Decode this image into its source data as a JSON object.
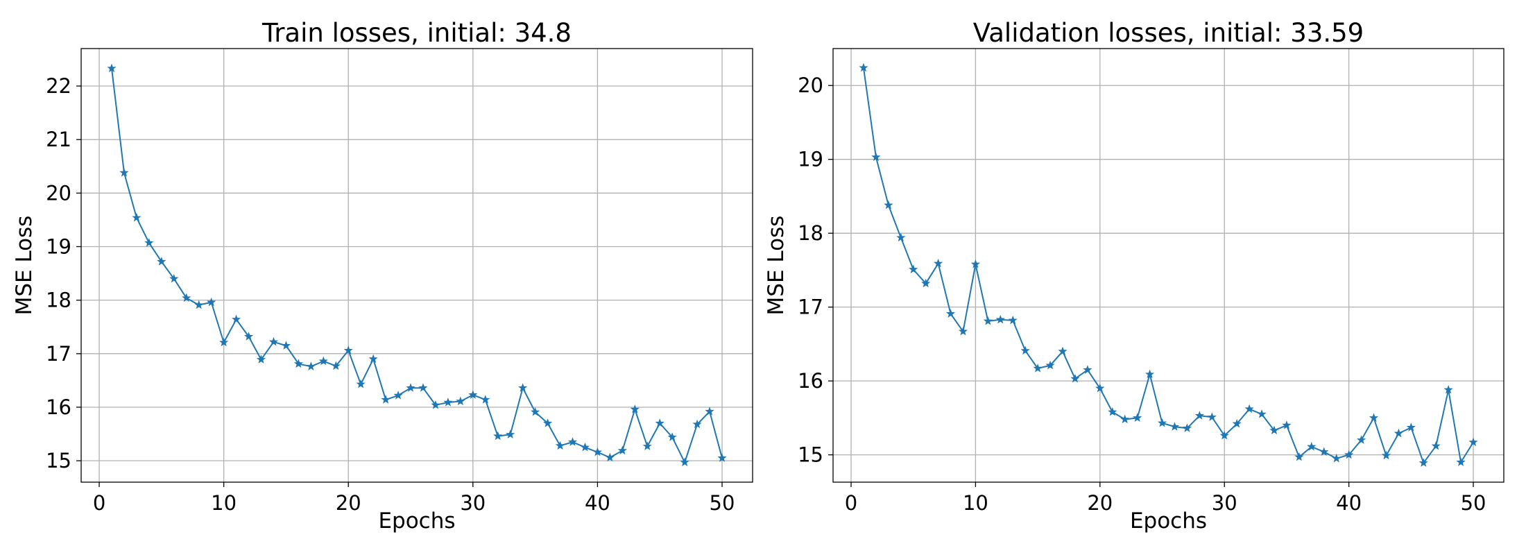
{
  "colors": {
    "series": "#1f77b4",
    "grid": "#b0b0b0",
    "axes": "#000000"
  },
  "chart_data": [
    {
      "type": "line",
      "title": "Train losses, initial: 34.8",
      "xlabel": "Epochs",
      "ylabel": "MSE Loss",
      "xlim": [
        -1.45,
        52.45
      ],
      "ylim": [
        14.6,
        22.7
      ],
      "xticks": [
        0,
        10,
        20,
        30,
        40,
        50
      ],
      "yticks": [
        15,
        16,
        17,
        18,
        19,
        20,
        21,
        22
      ],
      "grid": true,
      "marker": "star",
      "x": [
        1,
        2,
        3,
        4,
        5,
        6,
        7,
        8,
        9,
        10,
        11,
        12,
        13,
        14,
        15,
        16,
        17,
        18,
        19,
        20,
        21,
        22,
        23,
        24,
        25,
        26,
        27,
        28,
        29,
        30,
        31,
        32,
        33,
        34,
        35,
        36,
        37,
        38,
        39,
        40,
        41,
        42,
        43,
        44,
        45,
        46,
        47,
        48,
        49,
        50
      ],
      "y": [
        22.33,
        20.38,
        19.54,
        19.07,
        18.72,
        18.4,
        18.04,
        17.91,
        17.96,
        17.21,
        17.64,
        17.32,
        16.89,
        17.22,
        17.15,
        16.81,
        16.76,
        16.86,
        16.77,
        17.06,
        16.43,
        16.9,
        16.14,
        16.22,
        16.36,
        16.36,
        16.04,
        16.09,
        16.11,
        16.23,
        16.14,
        15.46,
        15.49,
        16.36,
        15.91,
        15.7,
        15.28,
        15.35,
        15.25,
        15.16,
        15.06,
        15.19,
        15.96,
        15.27,
        15.7,
        15.44,
        14.97,
        15.68,
        15.92,
        15.05
      ]
    },
    {
      "type": "line",
      "title": "Validation losses, initial: 33.59",
      "xlabel": "Epochs",
      "ylabel": "MSE Loss",
      "xlim": [
        -1.45,
        52.45
      ],
      "ylim": [
        14.63,
        20.5
      ],
      "xticks": [
        0,
        10,
        20,
        30,
        40,
        50
      ],
      "yticks": [
        15,
        16,
        17,
        18,
        19,
        20
      ],
      "grid": true,
      "marker": "star",
      "x": [
        1,
        2,
        3,
        4,
        5,
        6,
        7,
        8,
        9,
        10,
        11,
        12,
        13,
        14,
        15,
        16,
        17,
        18,
        19,
        20,
        21,
        22,
        23,
        24,
        25,
        26,
        27,
        28,
        29,
        30,
        31,
        32,
        33,
        34,
        35,
        36,
        37,
        38,
        39,
        40,
        41,
        42,
        43,
        44,
        45,
        46,
        47,
        48,
        49,
        50
      ],
      "y": [
        20.24,
        19.03,
        18.38,
        17.94,
        17.51,
        17.32,
        17.59,
        16.91,
        16.67,
        17.58,
        16.81,
        16.83,
        16.82,
        16.41,
        16.17,
        16.21,
        16.4,
        16.03,
        16.15,
        15.9,
        15.58,
        15.48,
        15.5,
        16.09,
        15.43,
        15.38,
        15.36,
        15.53,
        15.51,
        15.26,
        15.42,
        15.62,
        15.55,
        15.33,
        15.4,
        14.97,
        15.11,
        15.04,
        14.95,
        15.0,
        15.2,
        15.5,
        14.99,
        15.29,
        15.37,
        14.89,
        15.12,
        15.88,
        14.9,
        15.17
      ]
    }
  ]
}
